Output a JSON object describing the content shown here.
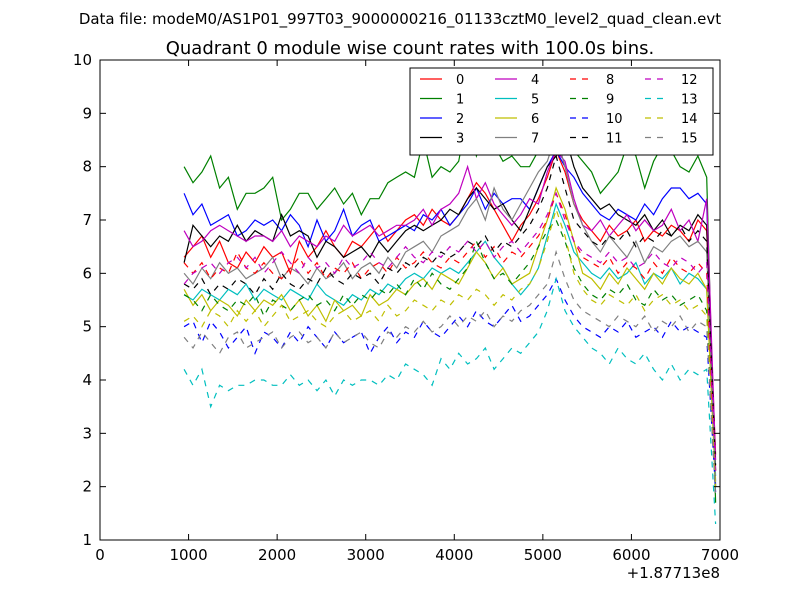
{
  "suptitle": "Data file: modeM0/AS1P01_997T03_9000000216_01133cztM0_level2_quad_clean.evt",
  "chart_data": {
    "type": "line",
    "title": "Quadrant 0 module wise count rates with 100.0s bins.",
    "xlabel": "",
    "ylabel": "",
    "x_offset_label": "+1.87713e8",
    "xlim": [
      0,
      7000
    ],
    "ylim": [
      1,
      10
    ],
    "xticks": [
      0,
      1000,
      2000,
      3000,
      4000,
      5000,
      6000,
      7000
    ],
    "yticks": [
      1,
      2,
      3,
      4,
      5,
      6,
      7,
      8,
      9,
      10
    ],
    "grid": false,
    "legend_position": "top-right",
    "legend_columns": 4,
    "x": [
      950,
      1050,
      1150,
      1250,
      1350,
      1450,
      1550,
      1650,
      1750,
      1850,
      1950,
      2050,
      2150,
      2250,
      2350,
      2450,
      2550,
      2650,
      2750,
      2850,
      2950,
      3050,
      3150,
      3250,
      3350,
      3450,
      3550,
      3650,
      3750,
      3850,
      3950,
      4050,
      4150,
      4250,
      4350,
      4450,
      4550,
      4650,
      4750,
      4850,
      4950,
      5050,
      5150,
      5250,
      5350,
      5450,
      5550,
      5650,
      5750,
      5850,
      5950,
      6050,
      6150,
      6250,
      6350,
      6450,
      6550,
      6650,
      6750,
      6850,
      6950
    ],
    "series": [
      {
        "name": "0",
        "color": "#ff0000",
        "dash": "solid",
        "values": [
          6.3,
          6.5,
          6.7,
          6.3,
          6.6,
          6.2,
          6.1,
          6.4,
          6.2,
          6.5,
          6.3,
          6.4,
          6.0,
          6.6,
          6.3,
          6.5,
          6.8,
          6.5,
          6.3,
          6.6,
          6.5,
          6.7,
          6.9,
          6.6,
          6.8,
          7.0,
          7.1,
          6.9,
          7.2,
          7.0,
          6.9,
          7.1,
          7.4,
          7.7,
          7.5,
          7.2,
          6.9,
          6.6,
          6.9,
          7.1,
          7.4,
          7.8,
          8.3,
          7.9,
          7.3,
          7.0,
          6.8,
          6.6,
          6.9,
          6.7,
          6.8,
          7.0,
          6.6,
          6.8,
          6.7,
          6.9,
          6.8,
          6.6,
          7.0,
          6.8,
          2.6
        ]
      },
      {
        "name": "1",
        "color": "#008000",
        "dash": "solid",
        "values": [
          8.0,
          7.7,
          7.9,
          8.2,
          7.6,
          7.8,
          7.2,
          7.5,
          7.5,
          7.6,
          7.8,
          7.0,
          7.2,
          7.5,
          7.5,
          7.2,
          7.4,
          7.6,
          7.3,
          7.5,
          7.1,
          7.4,
          7.4,
          7.7,
          7.8,
          7.9,
          7.8,
          8.5,
          7.8,
          8.0,
          7.9,
          8.1,
          9.0,
          8.2,
          8.6,
          8.4,
          8.1,
          8.2,
          8.0,
          8.0,
          8.3,
          8.6,
          9.1,
          8.6,
          8.3,
          8.1,
          7.9,
          7.5,
          7.7,
          7.9,
          8.4,
          8.2,
          7.6,
          8.1,
          8.4,
          8.3,
          8.0,
          7.9,
          8.2,
          7.8,
          1.7
        ]
      },
      {
        "name": "2",
        "color": "#0000ff",
        "dash": "solid",
        "values": [
          7.5,
          7.1,
          7.3,
          6.9,
          7.0,
          7.1,
          6.7,
          6.8,
          7.0,
          6.9,
          7.0,
          6.8,
          7.1,
          6.9,
          6.5,
          7.0,
          6.6,
          6.8,
          7.2,
          6.7,
          6.9,
          7.0,
          6.6,
          6.7,
          6.8,
          6.9,
          6.8,
          7.1,
          7.0,
          7.2,
          6.9,
          7.1,
          7.3,
          7.6,
          7.2,
          7.5,
          7.3,
          7.4,
          7.4,
          7.2,
          7.6,
          8.0,
          8.3,
          8.0,
          7.8,
          7.5,
          7.3,
          7.1,
          7.0,
          7.2,
          7.1,
          7.0,
          7.3,
          7.1,
          7.4,
          7.6,
          7.6,
          7.4,
          7.5,
          7.3,
          2.0
        ]
      },
      {
        "name": "3",
        "color": "#000000",
        "dash": "solid",
        "values": [
          6.2,
          6.9,
          6.7,
          6.5,
          6.7,
          6.6,
          6.9,
          6.6,
          6.8,
          6.7,
          6.6,
          7.1,
          6.7,
          6.8,
          6.7,
          6.3,
          6.6,
          6.5,
          6.3,
          6.4,
          6.5,
          6.3,
          6.6,
          6.4,
          6.6,
          6.8,
          6.9,
          6.8,
          6.9,
          7.0,
          7.2,
          7.1,
          7.4,
          7.6,
          7.4,
          7.2,
          7.3,
          7.0,
          6.8,
          7.2,
          7.6,
          8.0,
          8.2,
          8.6,
          8.0,
          7.6,
          7.4,
          7.2,
          7.3,
          7.1,
          7.0,
          6.9,
          7.1,
          6.8,
          7.0,
          6.7,
          6.9,
          6.8,
          7.1,
          6.9,
          2.3
        ]
      },
      {
        "name": "4",
        "color": "#bf00bf",
        "dash": "solid",
        "values": [
          6.8,
          6.5,
          6.6,
          6.8,
          6.9,
          6.8,
          6.7,
          6.6,
          6.7,
          6.7,
          6.6,
          6.8,
          6.5,
          6.7,
          6.6,
          6.5,
          6.7,
          6.6,
          6.9,
          6.7,
          6.8,
          6.9,
          6.7,
          6.8,
          6.9,
          6.9,
          7.0,
          7.2,
          6.9,
          7.2,
          7.3,
          7.5,
          8.0,
          7.4,
          7.7,
          7.3,
          7.1,
          6.9,
          7.1,
          7.4,
          7.3,
          7.9,
          8.3,
          8.1,
          7.4,
          6.9,
          6.8,
          7.0,
          6.7,
          6.9,
          7.1,
          6.8,
          7.0,
          6.8,
          6.9,
          7.2,
          6.8,
          7.0,
          6.6,
          7.4,
          2.5
        ]
      },
      {
        "name": "5",
        "color": "#00bfbf",
        "dash": "solid",
        "values": [
          5.6,
          5.5,
          5.7,
          5.6,
          5.5,
          5.7,
          5.6,
          5.8,
          5.5,
          5.7,
          5.6,
          5.5,
          5.7,
          5.6,
          5.5,
          5.8,
          5.6,
          5.5,
          5.4,
          5.6,
          5.5,
          5.7,
          5.6,
          5.8,
          5.7,
          5.9,
          6.0,
          5.9,
          6.1,
          6.0,
          6.1,
          6.0,
          6.2,
          6.4,
          6.6,
          6.3,
          6.1,
          5.8,
          5.6,
          5.8,
          6.1,
          6.7,
          7.3,
          6.9,
          6.4,
          6.2,
          6.0,
          5.9,
          6.1,
          5.9,
          6.0,
          6.2,
          5.8,
          6.0,
          5.9,
          6.1,
          5.8,
          6.0,
          5.9,
          5.7,
          2.2
        ]
      },
      {
        "name": "6",
        "color": "#bfbf00",
        "dash": "solid",
        "values": [
          5.7,
          5.4,
          5.6,
          5.3,
          5.5,
          5.4,
          5.2,
          5.5,
          5.3,
          5.5,
          5.4,
          5.6,
          5.3,
          5.5,
          5.2,
          5.4,
          5.1,
          5.5,
          5.3,
          5.4,
          5.2,
          5.6,
          5.4,
          5.5,
          5.7,
          5.6,
          5.8,
          5.9,
          5.7,
          6.0,
          5.9,
          5.8,
          6.1,
          6.4,
          6.2,
          5.9,
          6.1,
          5.8,
          5.9,
          6.0,
          6.5,
          7.0,
          7.6,
          7.2,
          6.6,
          6.0,
          5.9,
          5.7,
          6.0,
          5.8,
          6.1,
          5.9,
          5.7,
          6.0,
          5.8,
          6.1,
          5.9,
          5.8,
          6.0,
          5.7,
          2.0
        ]
      },
      {
        "name": "7",
        "color": "#808080",
        "dash": "solid",
        "values": [
          6.0,
          5.8,
          6.1,
          5.9,
          6.2,
          6.0,
          6.1,
          5.9,
          6.0,
          6.1,
          6.3,
          5.9,
          6.1,
          6.0,
          5.8,
          6.1,
          5.9,
          6.0,
          6.2,
          5.9,
          6.1,
          6.2,
          6.0,
          6.3,
          6.1,
          6.4,
          6.5,
          6.6,
          6.4,
          6.7,
          6.8,
          6.9,
          7.2,
          7.4,
          7.0,
          7.6,
          7.2,
          7.0,
          7.3,
          7.6,
          7.9,
          8.1,
          8.6,
          8.0,
          7.3,
          6.9,
          6.6,
          6.4,
          6.7,
          6.5,
          6.3,
          6.6,
          6.2,
          6.5,
          6.4,
          6.6,
          6.7,
          6.5,
          6.6,
          6.4,
          2.1
        ]
      },
      {
        "name": "8",
        "color": "#ff0000",
        "dash": "dash",
        "values": [
          6.2,
          6.0,
          6.2,
          5.9,
          6.1,
          6.0,
          6.4,
          6.1,
          6.0,
          6.2,
          6.0,
          5.9,
          6.1,
          6.3,
          6.0,
          6.2,
          5.9,
          6.1,
          6.0,
          6.2,
          5.9,
          6.1,
          6.2,
          6.0,
          6.3,
          6.1,
          6.2,
          6.4,
          6.2,
          6.1,
          6.3,
          6.2,
          6.4,
          6.6,
          6.3,
          6.5,
          6.2,
          6.4,
          6.3,
          6.5,
          6.7,
          7.0,
          7.5,
          7.1,
          6.6,
          6.3,
          6.2,
          6.1,
          6.3,
          6.0,
          6.2,
          6.1,
          5.9,
          6.2,
          6.0,
          6.3,
          6.1,
          6.0,
          6.2,
          6.0,
          2.2
        ]
      },
      {
        "name": "9",
        "color": "#008000",
        "dash": "dash",
        "values": [
          5.6,
          5.5,
          5.3,
          5.6,
          5.4,
          5.3,
          5.5,
          5.4,
          5.6,
          5.2,
          5.5,
          5.4,
          5.3,
          5.5,
          5.6,
          5.4,
          5.5,
          5.3,
          5.6,
          5.4,
          5.6,
          5.5,
          5.7,
          5.6,
          5.8,
          5.6,
          5.9,
          5.7,
          6.0,
          5.8,
          5.7,
          5.9,
          6.1,
          6.6,
          6.2,
          5.9,
          6.0,
          5.8,
          6.0,
          6.2,
          6.5,
          6.8,
          7.0,
          6.6,
          6.1,
          5.8,
          5.6,
          5.5,
          5.7,
          5.6,
          5.8,
          5.5,
          5.4,
          5.7,
          5.5,
          5.6,
          5.4,
          5.5,
          5.6,
          5.3,
          1.8
        ]
      },
      {
        "name": "10",
        "color": "#0000ff",
        "dash": "dash",
        "values": [
          5.0,
          5.1,
          4.7,
          5.1,
          4.9,
          4.6,
          4.8,
          5.0,
          4.5,
          4.9,
          4.8,
          4.6,
          4.9,
          4.7,
          5.0,
          4.8,
          4.6,
          4.9,
          4.7,
          4.8,
          4.9,
          4.5,
          4.8,
          5.0,
          4.7,
          4.9,
          4.8,
          5.1,
          4.9,
          4.8,
          5.0,
          5.2,
          5.0,
          5.3,
          5.1,
          5.0,
          5.2,
          5.4,
          5.1,
          5.2,
          5.4,
          5.6,
          5.9,
          5.5,
          5.2,
          5.0,
          4.9,
          4.8,
          5.0,
          4.9,
          5.1,
          4.8,
          4.9,
          5.0,
          4.8,
          5.1,
          4.9,
          5.0,
          4.9,
          4.8,
          1.9
        ]
      },
      {
        "name": "11",
        "color": "#000000",
        "dash": "dash",
        "values": [
          5.8,
          5.7,
          5.9,
          5.6,
          5.8,
          5.7,
          5.9,
          5.8,
          5.6,
          5.9,
          5.7,
          6.0,
          5.8,
          5.7,
          5.9,
          5.8,
          6.1,
          5.9,
          5.8,
          6.0,
          5.9,
          6.0,
          5.8,
          6.1,
          6.0,
          6.2,
          6.1,
          6.3,
          6.2,
          6.4,
          6.3,
          6.4,
          6.6,
          6.5,
          6.7,
          6.4,
          6.6,
          6.5,
          6.7,
          6.9,
          7.2,
          7.6,
          8.2,
          7.6,
          7.0,
          6.8,
          6.6,
          6.5,
          6.7,
          6.6,
          6.8,
          6.5,
          6.7,
          6.6,
          6.8,
          6.7,
          6.9,
          6.6,
          6.8,
          6.6,
          2.4
        ]
      },
      {
        "name": "12",
        "color": "#bf00bf",
        "dash": "dash",
        "values": [
          5.8,
          6.0,
          6.1,
          6.2,
          6.0,
          6.2,
          6.3,
          6.1,
          6.3,
          6.0,
          6.2,
          6.4,
          6.2,
          6.0,
          6.3,
          6.1,
          6.2,
          6.0,
          6.3,
          6.1,
          6.2,
          6.4,
          6.2,
          6.1,
          6.3,
          6.5,
          6.3,
          6.2,
          6.4,
          6.3,
          6.5,
          6.4,
          6.6,
          6.4,
          6.6,
          6.3,
          6.5,
          6.6,
          6.4,
          6.6,
          6.8,
          7.1,
          7.5,
          7.0,
          6.6,
          6.4,
          6.3,
          6.2,
          6.4,
          6.2,
          6.3,
          6.1,
          6.2,
          6.4,
          6.2,
          6.1,
          6.3,
          6.2,
          6.0,
          6.2,
          2.3
        ]
      },
      {
        "name": "13",
        "color": "#00bfbf",
        "dash": "dash",
        "values": [
          4.2,
          3.9,
          4.2,
          3.5,
          3.9,
          3.8,
          3.9,
          3.9,
          4.0,
          4.0,
          3.9,
          3.9,
          4.1,
          3.9,
          4.0,
          3.8,
          4.0,
          3.7,
          4.0,
          3.9,
          4.0,
          4.0,
          3.9,
          4.1,
          4.0,
          4.3,
          4.2,
          4.1,
          3.9,
          4.4,
          4.2,
          4.5,
          4.3,
          4.4,
          4.6,
          4.2,
          4.4,
          4.6,
          4.5,
          4.7,
          4.9,
          5.3,
          5.9,
          5.3,
          5.0,
          4.8,
          4.6,
          4.5,
          4.3,
          4.6,
          4.4,
          4.3,
          4.5,
          4.2,
          4.0,
          4.3,
          4.0,
          4.2,
          4.1,
          4.2,
          1.3
        ]
      },
      {
        "name": "14",
        "color": "#bfbf00",
        "dash": "dash",
        "values": [
          5.1,
          5.2,
          5.0,
          5.3,
          5.2,
          5.0,
          5.3,
          5.1,
          5.3,
          5.0,
          5.2,
          5.4,
          5.1,
          5.2,
          5.3,
          5.1,
          5.0,
          5.2,
          5.3,
          5.1,
          5.2,
          5.3,
          5.1,
          5.4,
          5.2,
          5.3,
          5.5,
          5.4,
          5.3,
          5.5,
          5.4,
          5.6,
          5.5,
          5.7,
          5.6,
          5.4,
          5.6,
          5.5,
          5.7,
          5.8,
          6.1,
          6.6,
          7.2,
          6.7,
          6.0,
          5.7,
          5.5,
          5.4,
          5.6,
          5.5,
          5.4,
          5.6,
          5.3,
          5.5,
          5.6,
          5.4,
          5.5,
          5.3,
          5.4,
          5.2,
          2.0
        ]
      },
      {
        "name": "15",
        "color": "#808080",
        "dash": "dash",
        "values": [
          4.8,
          4.6,
          4.9,
          4.7,
          4.5,
          4.8,
          4.9,
          4.6,
          4.7,
          4.8,
          4.9,
          4.6,
          4.8,
          4.9,
          4.7,
          4.8,
          4.6,
          4.9,
          4.7,
          4.8,
          4.9,
          4.7,
          4.6,
          4.9,
          4.8,
          5.0,
          4.9,
          5.1,
          4.9,
          5.0,
          5.2,
          5.0,
          5.2,
          5.1,
          5.3,
          5.0,
          5.2,
          5.1,
          5.3,
          5.4,
          5.6,
          5.8,
          6.4,
          5.9,
          5.5,
          5.3,
          5.2,
          5.1,
          5.0,
          5.2,
          5.1,
          5.0,
          5.2,
          4.9,
          5.1,
          5.0,
          5.2,
          4.9,
          5.1,
          5.0,
          1.8
        ]
      }
    ]
  }
}
